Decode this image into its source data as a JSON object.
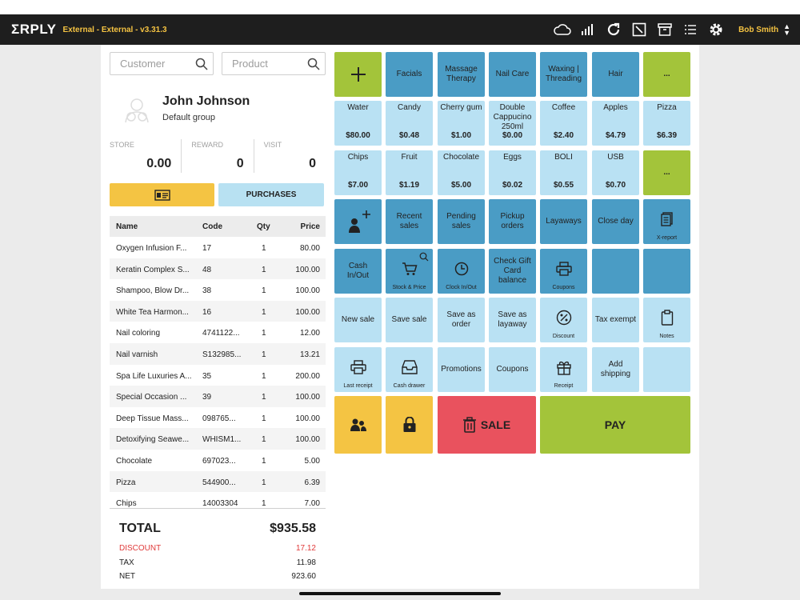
{
  "app": {
    "logo": "ΣRPLY",
    "version_label": "External - External - v3.31.3"
  },
  "top_icons": [
    "cloud-icon",
    "signal-icon",
    "refresh-icon",
    "fullscreen-icon",
    "archive-icon",
    "menu-icon",
    "gear-icon"
  ],
  "user": {
    "name": "Bob Smith"
  },
  "search": {
    "customer_placeholder": "Customer",
    "product_placeholder": "Product"
  },
  "customer": {
    "name": "John Johnson",
    "group": "Default group"
  },
  "stats": [
    {
      "label": "STORE",
      "value": "0.00"
    },
    {
      "label": "REWARD",
      "value": "0"
    },
    {
      "label": "VISIT",
      "value": "0"
    }
  ],
  "buttons": {
    "purchases": "PURCHASES"
  },
  "table": {
    "headers": {
      "name": "Name",
      "code": "Code",
      "qty": "Qty",
      "price": "Price"
    },
    "rows": [
      {
        "name": "Oxygen Infusion F...",
        "code": "17",
        "qty": "1",
        "price": "80.00"
      },
      {
        "name": "Keratin Complex S...",
        "code": "48",
        "qty": "1",
        "price": "100.00"
      },
      {
        "name": "Shampoo, Blow Dr...",
        "code": "38",
        "qty": "1",
        "price": "100.00"
      },
      {
        "name": "White Tea Harmon...",
        "code": "16",
        "qty": "1",
        "price": "100.00"
      },
      {
        "name": "Nail coloring",
        "code": "4741122...",
        "qty": "1",
        "price": "12.00"
      },
      {
        "name": "Nail varnish",
        "code": "S132985...",
        "qty": "1",
        "price": "13.21"
      },
      {
        "name": "Spa Life Luxuries A...",
        "code": "35",
        "qty": "1",
        "price": "200.00"
      },
      {
        "name": "Special Occasion ...",
        "code": "39",
        "qty": "1",
        "price": "100.00"
      },
      {
        "name": "Deep Tissue Mass...",
        "code": "098765...",
        "qty": "1",
        "price": "100.00"
      },
      {
        "name": "Detoxifying Seawe...",
        "code": "WHISM1...",
        "qty": "1",
        "price": "100.00"
      },
      {
        "name": "Chocolate",
        "code": "697023...",
        "qty": "1",
        "price": "5.00"
      },
      {
        "name": "Pizza",
        "code": "544900...",
        "qty": "1",
        "price": "6.39"
      },
      {
        "name": "Chips",
        "code": "14003304",
        "qty": "1",
        "price": "7.00"
      }
    ]
  },
  "totals": {
    "total_label": "TOTAL",
    "total_value": "$935.58",
    "discount_label": "DISCOUNT",
    "discount_value": "17.12",
    "tax_label": "TAX",
    "tax_value": "11.98",
    "net_label": "NET",
    "net_value": "923.60"
  },
  "grid": {
    "row1": [
      "Facials",
      "Massage Therapy",
      "Nail Care",
      "Waxing | Threading",
      "Hair",
      "..."
    ],
    "products1": [
      {
        "name": "Water",
        "price": "$80.00"
      },
      {
        "name": "Candy",
        "price": "$0.48"
      },
      {
        "name": "Cherry gum",
        "price": "$1.00"
      },
      {
        "name": "Double Cappucino 250ml",
        "price": "$0.00"
      },
      {
        "name": "Coffee",
        "price": "$2.40"
      },
      {
        "name": "Apples",
        "price": "$4.79"
      },
      {
        "name": "Pizza",
        "price": "$6.39"
      }
    ],
    "products2": [
      {
        "name": "Chips",
        "price": "$7.00"
      },
      {
        "name": "Fruit",
        "price": "$1.19"
      },
      {
        "name": "Chocolate",
        "price": "$5.00"
      },
      {
        "name": "Eggs",
        "price": "$0.02"
      },
      {
        "name": "BOLI",
        "price": "$0.55"
      },
      {
        "name": "USB",
        "price": "$0.70"
      }
    ],
    "more2": "...",
    "row4": {
      "recent": "Recent sales",
      "pending": "Pending sales",
      "pickup": "Pickup orders",
      "layaways": "Layaways",
      "close_day": "Close day",
      "xreport": "X-report"
    },
    "row5": {
      "cash": "Cash In/Out",
      "stock": "Stock & Price",
      "clock": "Clock In/Out",
      "gift": "Check Gift Card balance",
      "coupons_small": "Coupons"
    },
    "row6": {
      "new_sale": "New sale",
      "save_sale": "Save sale",
      "save_order": "Save as order",
      "save_layaway": "Save as layaway",
      "discount": "Discount",
      "tax_exempt": "Tax exempt",
      "notes": "Notes"
    },
    "row7": {
      "last_receipt": "Last receipt",
      "cash_drawer": "Cash drawer",
      "promotions": "Promotions",
      "coupons": "Coupons",
      "receipt": "Receipt",
      "add_shipping": "Add shipping"
    },
    "actions": {
      "sale": "SALE",
      "pay": "PAY"
    }
  },
  "colors": {
    "dark_blue": "#4a9cc5",
    "light_blue": "#b9e1f3",
    "green": "#a3c43a",
    "yellow": "#f4c443",
    "red": "#e9525e",
    "accent": "#f5c342"
  }
}
